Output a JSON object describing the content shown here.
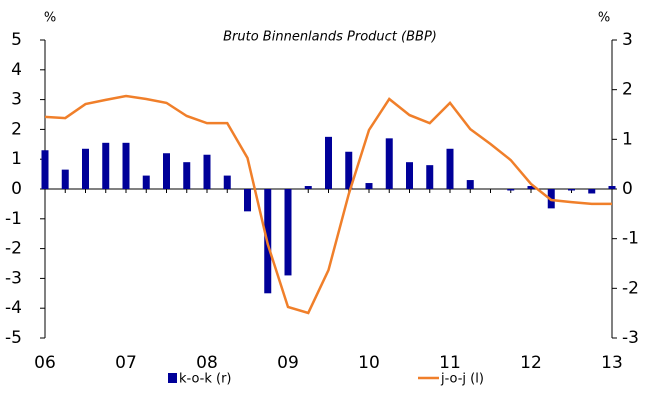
{
  "chart_data": {
    "type": "combo",
    "title": "Bruto Binnenlands Product (BBP)",
    "y_unit": "%",
    "y2_unit": "%",
    "categories": [
      "06",
      null,
      null,
      null,
      "07",
      null,
      null,
      null,
      "08",
      null,
      null,
      null,
      "09",
      null,
      null,
      null,
      "10",
      null,
      null,
      null,
      "11",
      null,
      null,
      null,
      "12",
      null,
      null,
      null,
      "13"
    ],
    "series": [
      {
        "name": "k-o-k (r)",
        "type": "bar",
        "axis": "y2",
        "color": "#000099",
        "values": [
          0.78,
          0.39,
          0.81,
          0.93,
          0.93,
          0.27,
          0.72,
          0.54,
          0.69,
          0.27,
          -0.45,
          -2.1,
          -1.74,
          0.06,
          1.05,
          0.75,
          0.12,
          1.02,
          0.54,
          0.48,
          0.81,
          0.18,
          0,
          -0.03,
          0.06,
          -0.39,
          -0.03,
          -0.09,
          0.06
        ]
      },
      {
        "name": "j-o-j (l)",
        "type": "line",
        "axis": "y",
        "color": "#f07f2a",
        "values": [
          2.42,
          2.38,
          2.85,
          2.99,
          3.12,
          3.02,
          2.89,
          2.45,
          2.21,
          2.21,
          1.04,
          -1.85,
          -3.96,
          -4.16,
          -2.72,
          -0.17,
          1.98,
          3.02,
          2.48,
          2.21,
          2.89,
          2.01,
          1.51,
          0.97,
          0.17,
          -0.37,
          -0.44,
          -0.5,
          -0.5
        ]
      }
    ],
    "ylim": [
      -5,
      5
    ],
    "yticks": [
      -5,
      -4,
      -3,
      -2,
      -1,
      0,
      1,
      2,
      3,
      4,
      5
    ],
    "y2lim": [
      -3,
      3
    ],
    "y2ticks": [
      -3,
      -2,
      -1,
      0,
      1,
      2,
      3
    ]
  }
}
